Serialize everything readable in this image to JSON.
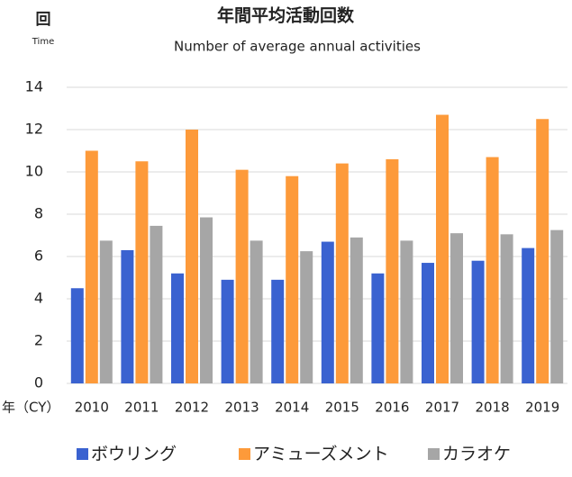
{
  "chart_data": {
    "type": "bar",
    "title": "年間平均活動回数",
    "subtitle": "Number of average annual activities",
    "y_label": "回",
    "y_label_sub": "Time",
    "x_label": "年（CY）",
    "categories": [
      "2010",
      "2011",
      "2012",
      "2013",
      "2014",
      "2015",
      "2016",
      "2017",
      "2018",
      "2019"
    ],
    "series": [
      {
        "name": "ボウリング",
        "color": "#3a62d0",
        "values": [
          4.5,
          6.3,
          5.2,
          4.9,
          4.9,
          6.7,
          5.2,
          5.7,
          5.8,
          6.4
        ]
      },
      {
        "name": "アミューズメント",
        "color": "#fd9a3a",
        "values": [
          11,
          10.5,
          12,
          10.1,
          9.8,
          10.4,
          10.6,
          12.7,
          10.7,
          12.5
        ]
      },
      {
        "name": "カラオケ",
        "color": "#a6a6a6",
        "values": [
          6.75,
          7.45,
          7.85,
          6.75,
          6.25,
          6.9,
          6.75,
          7.1,
          7.05,
          7.25
        ]
      }
    ],
    "ylim": [
      0,
      14
    ],
    "yticks": [
      0,
      2,
      4,
      6,
      8,
      10,
      12,
      14
    ],
    "grid": true,
    "legend": "bottom"
  }
}
